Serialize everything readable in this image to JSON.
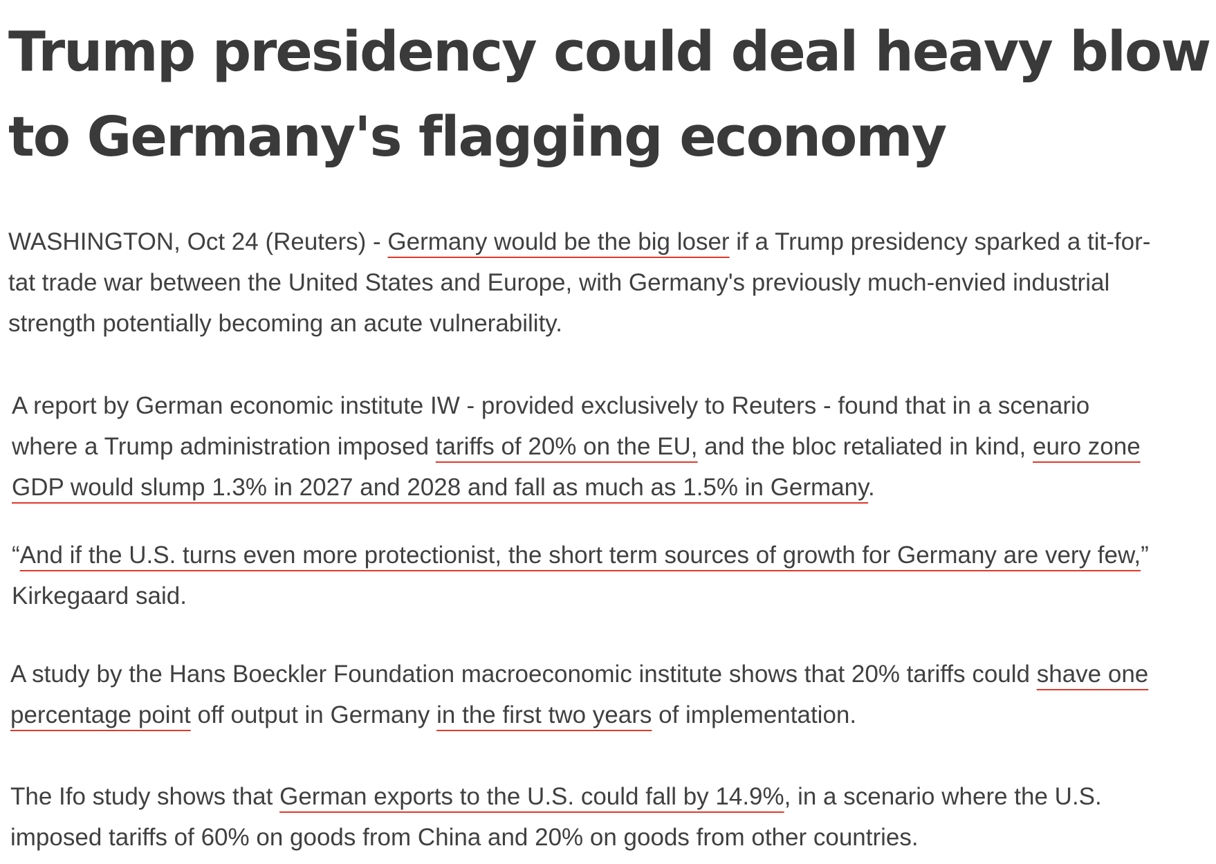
{
  "article": {
    "headline": {
      "line1": "Trump presidency could deal heavy blow",
      "line2": "to Germany's flagging economy"
    },
    "paragraphs": [
      {
        "lines": [
          [
            "WASHINGTON, Oct 24 (Reuters) - ",
            "Germany would be the big loser",
            " if a Trump presidency sparked a tit-for-"
          ],
          [
            "tat trade war between the United States and Europe, with Germany's previously much-envied industrial"
          ],
          [
            "strength potentially becoming an acute vulnerability."
          ]
        ]
      },
      {
        "lines": [
          [
            "A report by German economic institute IW - provided exclusively to Reuters - found that in a scenario"
          ],
          [
            "where a Trump administration imposed ",
            "tariffs of 20% on the EU,",
            " and the bloc retaliated in kind, ",
            "euro zone"
          ],
          [
            "GDP would slump 1.3% in 2027 and 2028 and fall as much as 1.5% in Germany",
            "."
          ]
        ]
      },
      {
        "lines": [
          [
            "“",
            "And if the U.S. turns even more protectionist, the short term sources of growth for Germany are very few,",
            "”"
          ],
          [
            "Kirkegaard said."
          ]
        ]
      },
      {
        "lines": [
          [
            "A study by the Hans Boeckler Foundation macroeconomic institute shows that 20% tariffs could ",
            "shave one"
          ],
          [
            "percentage point",
            " off output in Germany ",
            "in the first two years",
            " of implementation."
          ]
        ]
      },
      {
        "lines": [
          [
            "The Ifo study shows that ",
            "German exports to the U.S. could fall by 14.9%",
            ", in a scenario where the U.S."
          ],
          [
            "imposed tariffs of 60% on goods from China and 20% on goods from other countries."
          ]
        ]
      }
    ],
    "colors": {
      "text": "#404040",
      "headline": "#3a3a3a",
      "highlight_underline": "#e0382a",
      "background": "#ffffff"
    }
  }
}
